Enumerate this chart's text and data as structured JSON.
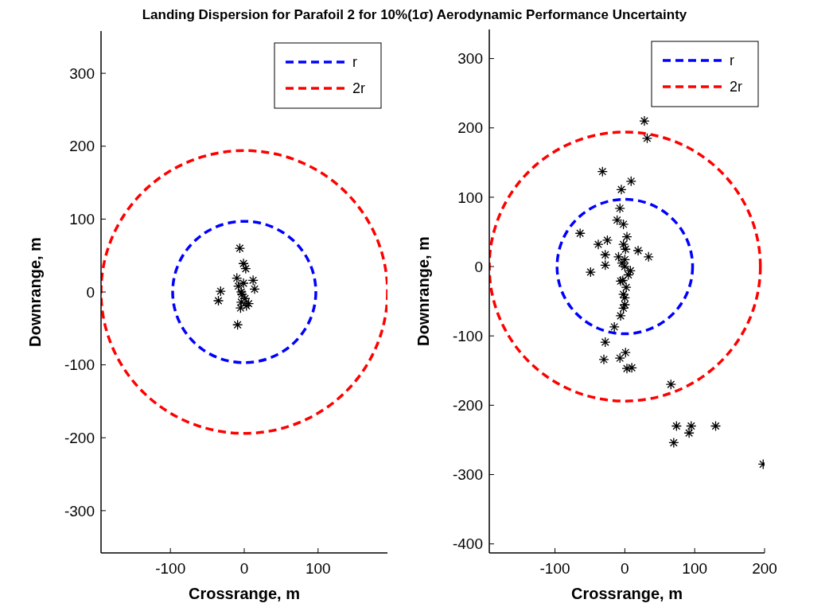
{
  "chart_data": [
    {
      "type": "scatter",
      "title": "Landing Dispersion for Parafoil 2 for 10%(1σ) Aerodynamic Performance Uncertainty",
      "xlabel": "Crossrange, m",
      "ylabel": "Downrange, m",
      "xlim": [
        -194,
        194
      ],
      "xticks": [
        -100,
        0,
        100
      ],
      "ylim": [
        -358,
        358
      ],
      "yticks": [
        -300,
        -200,
        -100,
        0,
        100,
        200,
        300
      ],
      "grid": false,
      "legend": "top right",
      "series": [
        {
          "name": "r",
          "type": "line",
          "color": "#0000ff",
          "line_style": "dashed"
        },
        {
          "name": "2r",
          "type": "line",
          "color": "#ff0000",
          "line_style": "dashed"
        },
        {
          "color": "#000000",
          "marker": "cross",
          "x": [
            -6,
            -1,
            2,
            -32,
            -35,
            -9,
            -10,
            12,
            14,
            -8,
            -4,
            6,
            -3,
            -1,
            -5,
            3,
            -4,
            1
          ],
          "values": [
            60,
            39,
            32,
            1,
            -12,
            -45,
            19,
            16,
            4,
            8,
            -14,
            -16,
            -3,
            12,
            -22,
            -19,
            0,
            -9
          ]
        }
      ]
    },
    {
      "type": "scatter",
      "xlabel": "Crossrange, m",
      "ylabel": "Downrange, m",
      "xlim": [
        -194,
        200
      ],
      "xticks": [
        -100,
        0,
        100,
        200
      ],
      "ylim": [
        -413,
        342
      ],
      "yticks": [
        -400,
        -300,
        -200,
        -100,
        0,
        100,
        200,
        300
      ],
      "grid": false,
      "legend": "top right",
      "series": [
        {
          "name": "r",
          "type": "line",
          "color": "#0000ff",
          "line_style": "dashed"
        },
        {
          "name": "2r",
          "type": "line",
          "color": "#ff0000",
          "line_style": "dashed"
        },
        {
          "color": "#000000",
          "marker": "cross",
          "x": [
            28,
            32,
            -32,
            9,
            -5,
            -7,
            -11,
            -2,
            -64,
            -38,
            -25,
            3,
            -2,
            19,
            34,
            -28,
            -9,
            -49,
            -28,
            8,
            -6,
            -2,
            0,
            -6,
            -15,
            -28,
            -30,
            1,
            -7,
            3,
            10,
            66,
            74,
            95,
            130,
            92,
            70,
            198,
            0,
            0,
            -3,
            2,
            0,
            -2,
            1,
            -4,
            5
          ],
          "values": [
            210,
            185,
            137,
            123,
            111,
            84,
            67,
            61,
            48,
            32,
            38,
            43,
            32,
            23,
            14,
            17,
            14,
            -8,
            2,
            -6,
            -21,
            -40,
            -55,
            -71,
            -87,
            -109,
            -134,
            -124,
            -132,
            -147,
            -146,
            -170,
            -230,
            -230,
            -230,
            -240,
            -254,
            -285,
            0,
            10,
            -20,
            -30,
            -45,
            -60,
            25,
            5,
            -12
          ]
        }
      ]
    }
  ]
}
